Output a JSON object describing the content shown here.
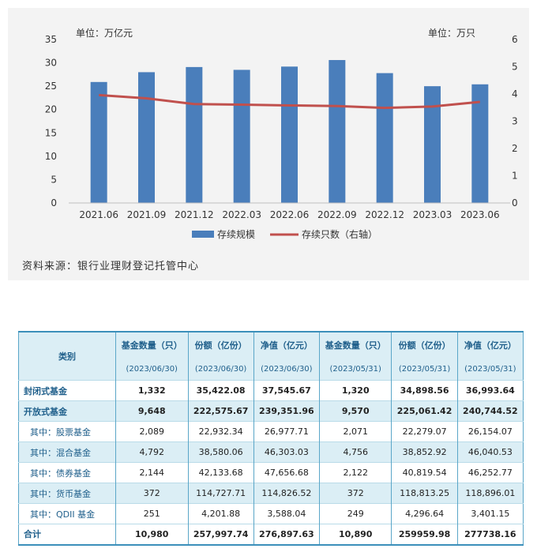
{
  "chart_data": {
    "type": "bar",
    "categories": [
      "2021.06",
      "2021.09",
      "2021.12",
      "2022.03",
      "2022.06",
      "2022.09",
      "2022.12",
      "2023.03",
      "2023.06"
    ],
    "series": [
      {
        "name": "存续规模",
        "type": "bar",
        "axis": "left",
        "values": [
          25.9,
          28.0,
          29.1,
          28.5,
          29.2,
          30.6,
          27.8,
          25.0,
          25.4
        ],
        "color": "#4a7ebb"
      },
      {
        "name": "存续只数（右轴）",
        "type": "line",
        "axis": "right",
        "values": [
          3.96,
          3.84,
          3.63,
          3.61,
          3.58,
          3.56,
          3.49,
          3.54,
          3.71
        ],
        "color": "#c0504d"
      }
    ],
    "ylim_left": [
      0,
      35
    ],
    "yticks_left": [
      "0",
      "5",
      "10",
      "15",
      "20",
      "25",
      "30",
      "35"
    ],
    "ylim_right": [
      0,
      6
    ],
    "yticks_right": [
      "0",
      "1",
      "2",
      "3",
      "4",
      "5",
      "6"
    ],
    "unit_left": "单位：万亿元",
    "unit_right": "单位：万只",
    "legend_position": "bottom",
    "grid": false
  },
  "source": "资料来源：银行业理财登记托管中心",
  "table": {
    "header_category": "类别",
    "columns": [
      {
        "label": "基金数量（只）",
        "date": "(2023/06/30)"
      },
      {
        "label": "份额（亿份）",
        "date": "(2023/06/30)"
      },
      {
        "label": "净值（亿元）",
        "date": "(2023/06/30)"
      },
      {
        "label": "基金数量（只）",
        "date": "(2023/05/31)"
      },
      {
        "label": "份额（亿份）",
        "date": "(2023/05/31)"
      },
      {
        "label": "净值（亿元）",
        "date": "(2023/05/31)"
      }
    ],
    "rows": [
      {
        "name": "封闭式基金",
        "values": [
          "1,332",
          "35,422.08",
          "37,545.67",
          "1,320",
          "34,898.56",
          "36,993.64"
        ],
        "bold": true,
        "shade": false,
        "sub": false
      },
      {
        "name": "开放式基金",
        "values": [
          "9,648",
          "222,575.67",
          "239,351.96",
          "9,570",
          "225,061.42",
          "240,744.52"
        ],
        "bold": true,
        "shade": true,
        "sub": false
      },
      {
        "name": "其中：股票基金",
        "values": [
          "2,089",
          "22,932.34",
          "26,977.71",
          "2,071",
          "22,279.07",
          "26,154.07"
        ],
        "bold": false,
        "shade": false,
        "sub": true
      },
      {
        "name": "其中：混合基金",
        "values": [
          "4,792",
          "38,580.06",
          "46,303.03",
          "4,756",
          "38,852.92",
          "46,040.53"
        ],
        "bold": false,
        "shade": true,
        "sub": true
      },
      {
        "name": "其中：债券基金",
        "values": [
          "2,144",
          "42,133.68",
          "47,656.68",
          "2,122",
          "40,819.54",
          "46,252.77"
        ],
        "bold": false,
        "shade": false,
        "sub": true
      },
      {
        "name": "其中：货币基金",
        "values": [
          "372",
          "114,727.71",
          "114,826.52",
          "372",
          "118,813.25",
          "118,896.01"
        ],
        "bold": false,
        "shade": true,
        "sub": true
      },
      {
        "name": "其中：QDII 基金",
        "values": [
          "251",
          "4,201.88",
          "3,588.04",
          "249",
          "4,296.64",
          "3,401.15"
        ],
        "bold": false,
        "shade": false,
        "sub": true
      },
      {
        "name": "合计",
        "values": [
          "10,980",
          "257,997.74",
          "276,897.63",
          "10,890",
          "259959.98",
          "277738.16"
        ],
        "bold": true,
        "shade": false,
        "sub": false
      }
    ]
  }
}
